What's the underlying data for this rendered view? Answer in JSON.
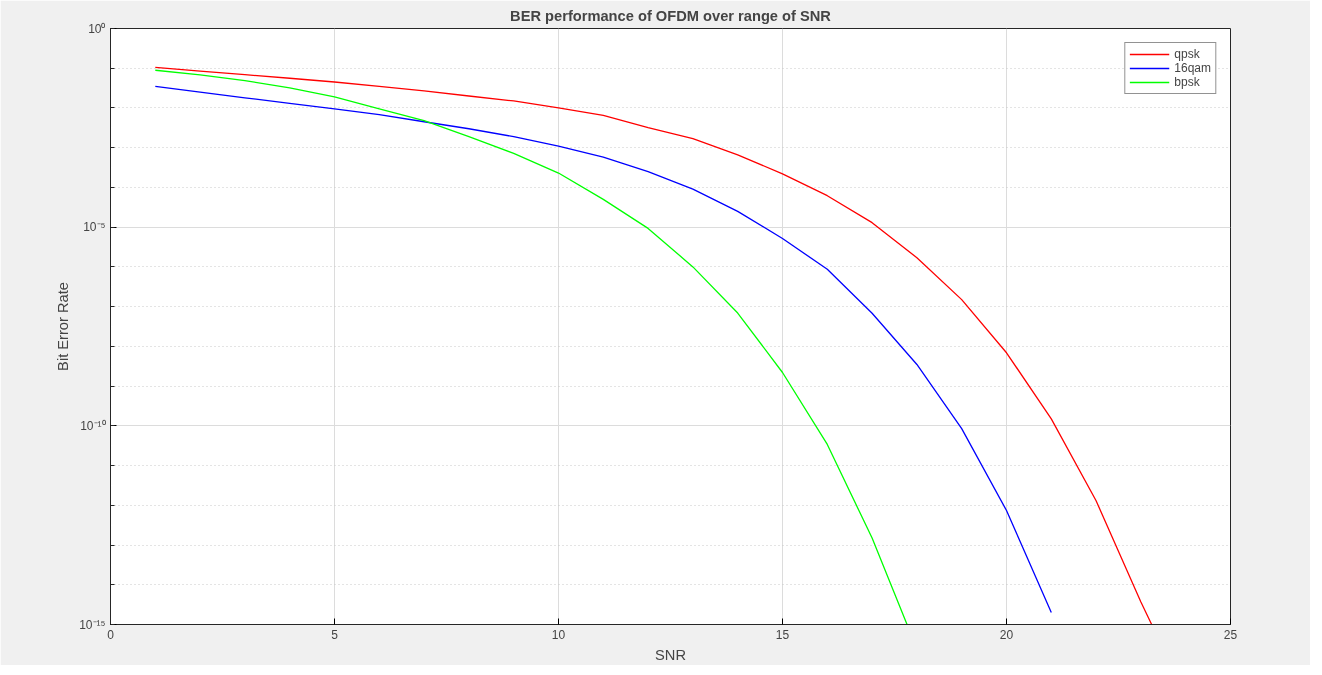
{
  "chart_data": {
    "type": "line",
    "title": "BER performance of OFDM over range of SNR",
    "xlabel": "SNR",
    "ylabel": "Bit Error Rate",
    "xlim": [
      0,
      25
    ],
    "xticks": [
      0,
      5,
      10,
      15,
      20,
      25
    ],
    "ylim": [
      1e-15,
      1
    ],
    "yticks": [
      {
        "value": 1,
        "label": "10⁰"
      },
      {
        "value": 1e-05,
        "label": "10⁻⁵"
      },
      {
        "value": 1e-10,
        "label": "10⁻¹⁰"
      },
      {
        "value": 1e-15,
        "label": "10⁻¹⁵"
      }
    ],
    "log": "y",
    "grid": true,
    "legend": "top right",
    "line_style": "solid",
    "marker": "none",
    "series": [
      {
        "name": "qpsk",
        "color": "#ff0000",
        "x": [
          1,
          2,
          3,
          4,
          5,
          6,
          7,
          8,
          9,
          10,
          11,
          12,
          13,
          14,
          15,
          16,
          17,
          18,
          19,
          20,
          21,
          22,
          23,
          23.24
        ],
        "values": [
          0.105,
          0.085,
          0.069,
          0.056,
          0.045,
          0.035,
          0.027,
          0.02,
          0.015,
          0.01,
          0.0065,
          0.0032,
          0.0017,
          0.00066,
          0.00022,
          6.2e-05,
          1.3e-05,
          1.7e-06,
          1.5e-07,
          6.9e-09,
          1.5e-10,
          1.3e-12,
          3.7e-15,
          1e-15
        ]
      },
      {
        "name": "16qam",
        "color": "#0000ff",
        "x": [
          1,
          2,
          3,
          4,
          5,
          6,
          7,
          8,
          9,
          10,
          11,
          12,
          13,
          14,
          15,
          16,
          17,
          18,
          19,
          20,
          21
        ],
        "values": [
          0.035,
          0.025,
          0.018,
          0.013,
          0.0095,
          0.0068,
          0.0045,
          0.003,
          0.0019,
          0.0011,
          0.00058,
          0.00025,
          9.1e-05,
          2.5e-05,
          5.2e-06,
          8.7e-07,
          6.8e-08,
          3.5e-09,
          8.5e-11,
          7.4e-13,
          2e-15
        ]
      },
      {
        "name": "bpsk",
        "color": "#00ff00",
        "x": [
          1,
          2,
          3,
          4,
          5,
          6,
          7,
          8,
          9,
          10,
          11,
          12,
          13,
          14,
          15,
          16,
          17,
          17.78
        ],
        "values": [
          0.089,
          0.068,
          0.049,
          0.032,
          0.019,
          0.0095,
          0.0048,
          0.0019,
          0.00072,
          0.00023,
          5e-05,
          9.3e-06,
          1e-06,
          6.9e-08,
          2.2e-09,
          3.4e-11,
          1.5e-13,
          1e-15
        ]
      }
    ]
  }
}
